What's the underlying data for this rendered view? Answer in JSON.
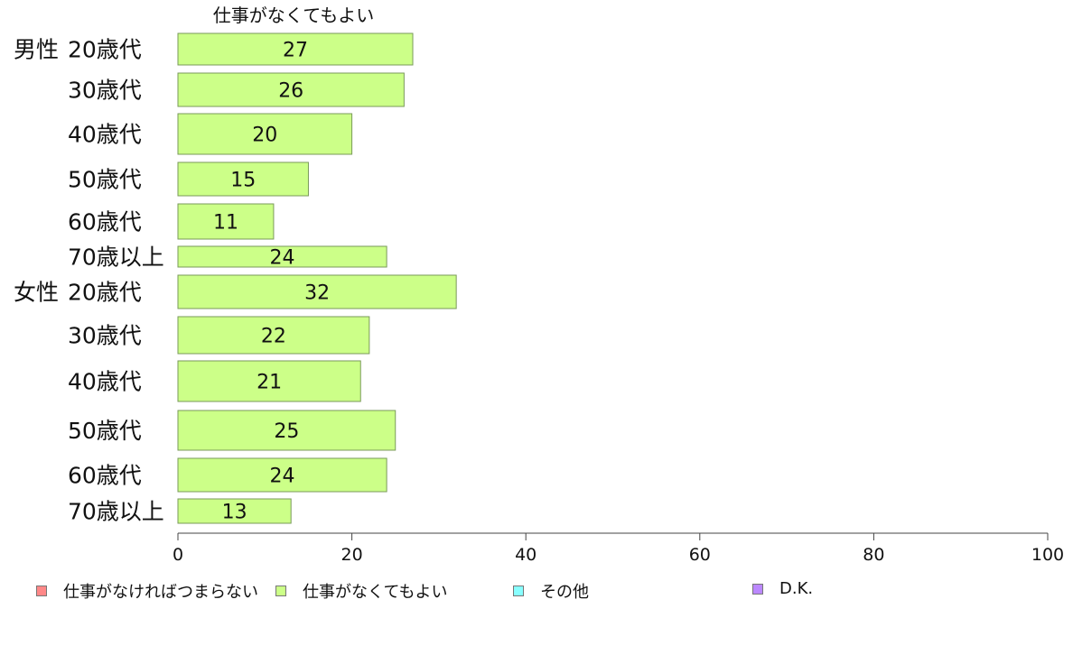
{
  "chart_data": {
    "type": "bar",
    "orientation": "horizontal",
    "series_title": "仕事がなくてもよい",
    "groups": [
      {
        "label": "男性",
        "categories": [
          "20歳代",
          "30歳代",
          "40歳代",
          "50歳代",
          "60歳代",
          "70歳以上"
        ],
        "values": [
          27,
          26,
          20,
          15,
          11,
          24
        ]
      },
      {
        "label": "女性",
        "categories": [
          "20歳代",
          "30歳代",
          "40歳代",
          "50歳代",
          "60歳代",
          "70歳以上"
        ],
        "values": [
          32,
          22,
          21,
          25,
          24,
          13
        ]
      }
    ],
    "xlim": [
      0,
      100
    ],
    "xticks": [
      0,
      20,
      40,
      60,
      80,
      100
    ],
    "grid": false,
    "bar_color": "#ccff88",
    "legend_position": "bottom",
    "legend": [
      {
        "name": "仕事がなければつまらない",
        "color": "#ff8888"
      },
      {
        "name": "仕事がなくてもよい",
        "color": "#ccff88"
      },
      {
        "name": "その他",
        "color": "#88ffff"
      },
      {
        "name": "D.K.",
        "color": "#bb88ff"
      }
    ]
  }
}
